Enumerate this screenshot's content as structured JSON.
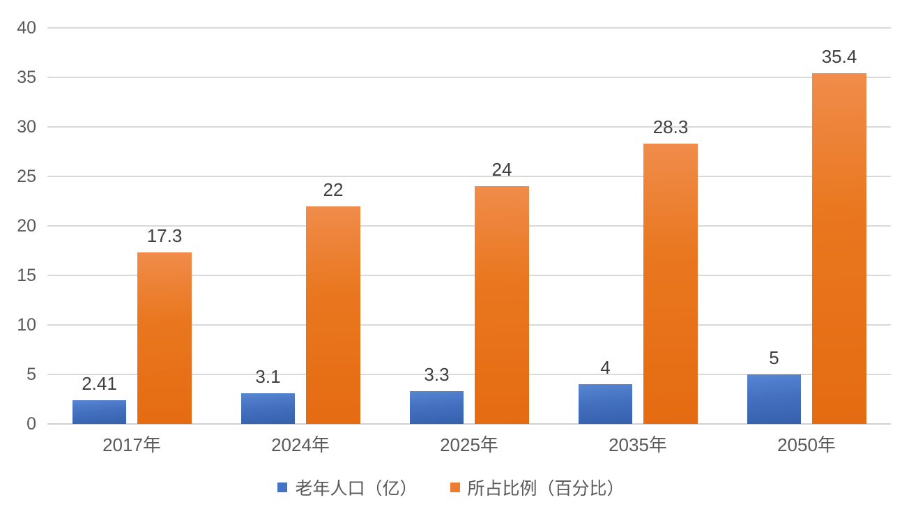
{
  "chart_data": {
    "type": "bar",
    "title": "",
    "categories": [
      "2017年",
      "2024年",
      "2025年",
      "2035年",
      "2050年"
    ],
    "series": [
      {
        "name": "老年人口（亿）",
        "values": [
          2.41,
          3.1,
          3.3,
          4,
          5
        ],
        "data_labels": [
          "2.41",
          "3.1",
          "3.3",
          "4",
          "5"
        ],
        "color": "#4472C4"
      },
      {
        "name": "所占比例（百分比）",
        "values": [
          17.3,
          22,
          24,
          28.3,
          35.4
        ],
        "data_labels": [
          "17.3",
          "22",
          "24",
          "28.3",
          "35.4"
        ],
        "color": "#ED7D31"
      }
    ],
    "xlabel": "",
    "ylabel": "",
    "ylim": [
      0,
      40
    ],
    "ytick_step": 5,
    "ytick_labels": [
      "0",
      "5",
      "10",
      "15",
      "20",
      "25",
      "30",
      "35",
      "40"
    ],
    "grid": "horizontal",
    "gridline_color": "#D9D9D9",
    "tick_label_color": "#595959",
    "data_label_color": "#404040",
    "legend_position": "bottom",
    "background_color": "#FFFFFF"
  }
}
